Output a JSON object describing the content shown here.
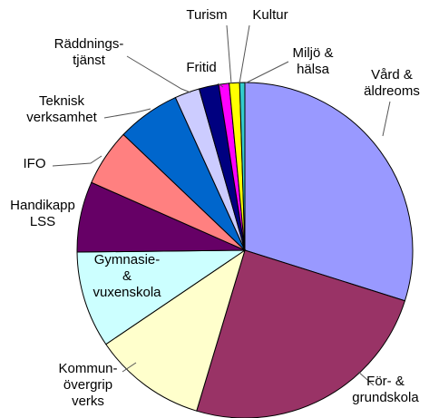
{
  "chart_data": {
    "type": "pie",
    "categories": [
      "Vård &\näldreoms",
      "För- &\ngrundskola",
      "Kommun-\növergrip\nverks",
      "Gymnasie-\n&\nvuxenskola",
      "Handikapp\nLSS",
      "IFO",
      "Teknisk\nverksamhet",
      "Räddnings-\ntjänst",
      "Fritid",
      "Turism",
      "Kultur",
      "Miljö &\nhälsa"
    ],
    "values": [
      29.9,
      24.8,
      10.9,
      9.3,
      6.8,
      5.5,
      6.1,
      2.4,
      1.9,
      1.0,
      1.0,
      0.5
    ],
    "colors": [
      "#9999ff",
      "#993366",
      "#ffffcc",
      "#ccffff",
      "#660066",
      "#ff8080",
      "#0066cc",
      "#ccccff",
      "#000080",
      "#ff00ff",
      "#ffff00",
      "#33cccc"
    ]
  }
}
